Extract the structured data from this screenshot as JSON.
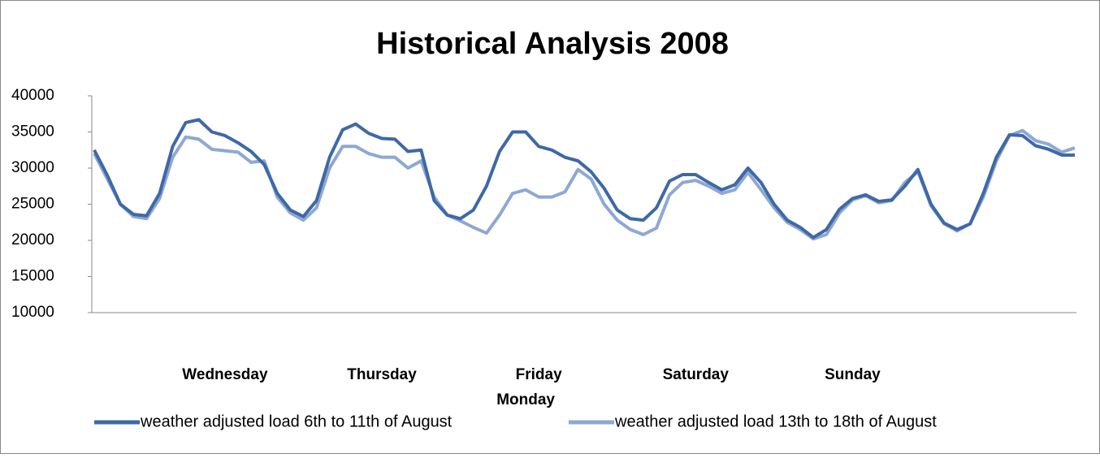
{
  "chart_data": {
    "type": "line",
    "title": "Historical Analysis 2008",
    "categories": [
      null,
      null,
      null,
      null,
      null,
      null,
      null,
      null,
      null,
      null,
      "Wednesday",
      null,
      null,
      null,
      null,
      null,
      null,
      null,
      null,
      null,
      null,
      null,
      "Thursday",
      null,
      null,
      null,
      null,
      null,
      null,
      null,
      null,
      null,
      null,
      "Monday",
      "Friday",
      null,
      null,
      null,
      null,
      null,
      null,
      null,
      null,
      null,
      null,
      null,
      "Saturday",
      null,
      null,
      null,
      null,
      null,
      null,
      null,
      null,
      null,
      null,
      null,
      "Sunday",
      null,
      null,
      null,
      null,
      null,
      null,
      null,
      null,
      null,
      null,
      null,
      null,
      null,
      null,
      null,
      null,
      null
    ],
    "series": [
      {
        "name": "weather adjusted load 6th to 11th of August",
        "color": "#3f68a6",
        "values": [
          32500,
          29000,
          25000,
          23600,
          23400,
          26500,
          33000,
          36300,
          36700,
          35000,
          34500,
          33500,
          32300,
          30500,
          26500,
          24200,
          23300,
          25500,
          31500,
          35300,
          36100,
          34800,
          34100,
          34000,
          32300,
          32500,
          25500,
          23500,
          23000,
          24200,
          27500,
          32300,
          35000,
          35000,
          33000,
          32500,
          31500,
          31000,
          29500,
          27200,
          24200,
          23000,
          22800,
          24500,
          28200,
          29100,
          29100,
          28000,
          27000,
          27700,
          30000,
          28000,
          25000,
          22800,
          21800,
          20400,
          21500,
          24300,
          25800,
          26300,
          25400,
          25600,
          27500,
          29800,
          25000,
          22400,
          21500,
          22300,
          26500,
          31500,
          34600,
          34500,
          33100,
          32600,
          31800,
          31800
        ]
      },
      {
        "name": "weather adjusted load 13th to 18th of August",
        "color": "#8ea8d3",
        "values": [
          32000,
          28500,
          25000,
          23300,
          23000,
          25800,
          31500,
          34300,
          34000,
          32600,
          32400,
          32200,
          30800,
          31000,
          26000,
          23800,
          22800,
          24500,
          30000,
          33000,
          33000,
          32000,
          31500,
          31500,
          30000,
          31000,
          26000,
          23500,
          22700,
          21800,
          21000,
          23500,
          26500,
          27000,
          26000,
          26000,
          26700,
          29800,
          28500,
          25000,
          22800,
          21500,
          20800,
          21700,
          26300,
          28000,
          28300,
          27500,
          26500,
          27000,
          29400,
          27000,
          24500,
          22500,
          21500,
          20200,
          20800,
          23800,
          25600,
          26200,
          25200,
          25500,
          28000,
          29500,
          24800,
          22300,
          21300,
          22300,
          26000,
          31000,
          34500,
          35200,
          33800,
          33300,
          32200,
          32800
        ]
      }
    ],
    "ylim": [
      10000,
      40000
    ],
    "yticks": [
      10000,
      15000,
      20000,
      25000,
      30000,
      35000,
      40000
    ],
    "grid": false,
    "legend": "bottom"
  }
}
